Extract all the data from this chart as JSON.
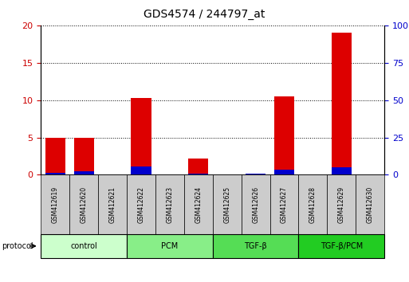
{
  "title": "GDS4574 / 244797_at",
  "samples": [
    "GSM412619",
    "GSM412620",
    "GSM412621",
    "GSM412622",
    "GSM412623",
    "GSM412624",
    "GSM412625",
    "GSM412626",
    "GSM412627",
    "GSM412628",
    "GSM412629",
    "GSM412630"
  ],
  "count_values": [
    5.0,
    5.0,
    0.0,
    10.3,
    0.0,
    2.2,
    0.0,
    0.0,
    10.5,
    0.0,
    19.0,
    0.0
  ],
  "percentile_values": [
    1.2,
    2.2,
    0.0,
    5.5,
    0.0,
    0.9,
    0.0,
    0.8,
    3.5,
    0.0,
    5.3,
    0.0
  ],
  "groups": [
    {
      "label": "control",
      "start": 0,
      "end": 3,
      "color": "#ccffcc"
    },
    {
      "label": "PCM",
      "start": 3,
      "end": 6,
      "color": "#88ee88"
    },
    {
      "label": "TGF-β",
      "start": 6,
      "end": 9,
      "color": "#55dd55"
    },
    {
      "label": "TGF-β/PCM",
      "start": 9,
      "end": 12,
      "color": "#22cc22"
    }
  ],
  "bar_color_red": "#dd0000",
  "bar_color_blue": "#0000cc",
  "bar_width": 0.7,
  "ylim_left": [
    0,
    20
  ],
  "ylim_right": [
    0,
    100
  ],
  "yticks_left": [
    0,
    5,
    10,
    15,
    20
  ],
  "yticks_right": [
    0,
    25,
    50,
    75,
    100
  ],
  "grid_color": "black",
  "tick_label_color_left": "#cc0000",
  "tick_label_color_right": "#0000cc",
  "legend_count_color": "#dd0000",
  "legend_pct_color": "#0000cc"
}
